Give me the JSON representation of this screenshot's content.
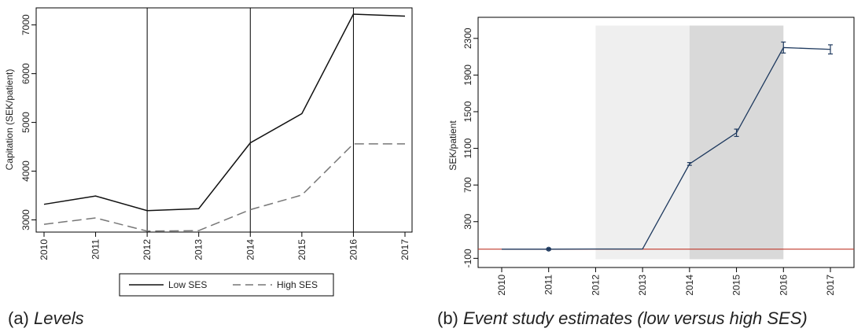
{
  "chart_data": [
    {
      "type": "line",
      "title": "",
      "xlabel": "",
      "ylabel": "Capitation (SEK/patient)",
      "x": [
        "2010",
        "2011",
        "2012",
        "2013",
        "2014",
        "2015",
        "2016",
        "2017"
      ],
      "ylim": [
        2750,
        7350
      ],
      "yticks": [
        3000,
        4000,
        5000,
        6000,
        7000
      ],
      "vlines": [
        "2012",
        "2014",
        "2016"
      ],
      "series": [
        {
          "name": "Low SES",
          "style": "solid",
          "color": "#111111",
          "values": [
            3320,
            3490,
            3190,
            3230,
            4580,
            5180,
            7220,
            7180
          ]
        },
        {
          "name": "High SES",
          "style": "dashed",
          "color": "#777777",
          "values": [
            2910,
            3040,
            2770,
            2780,
            3210,
            3510,
            4560,
            4560
          ]
        }
      ],
      "legend_position": "bottom",
      "caption_prefix": "(a) ",
      "caption_title": "Levels"
    },
    {
      "type": "line",
      "title": "",
      "xlabel": "",
      "ylabel": "SEK/patient",
      "x": [
        "2010",
        "2011",
        "2012",
        "2013",
        "2014",
        "2015",
        "2016",
        "2017"
      ],
      "ylim": [
        -200,
        2530
      ],
      "yticks": [
        -100,
        300,
        700,
        1100,
        1500,
        1900,
        2300
      ],
      "shaded_regions": [
        {
          "from": "2012",
          "to": "2014",
          "color": "#efefef"
        },
        {
          "from": "2014",
          "to": "2016",
          "color": "#d9d9d9"
        }
      ],
      "reference_line": {
        "y": 0,
        "color": "#c0392b"
      },
      "series": [
        {
          "name": "",
          "color": "#1f3a5f",
          "values": [
            0,
            0,
            2,
            2,
            930,
            1270,
            2200,
            2180
          ],
          "ci": [
            0,
            10,
            0,
            0,
            15,
            40,
            60,
            50
          ]
        }
      ],
      "caption_prefix": "(b) ",
      "caption_title": "Event study estimates (low versus high SES)"
    }
  ]
}
